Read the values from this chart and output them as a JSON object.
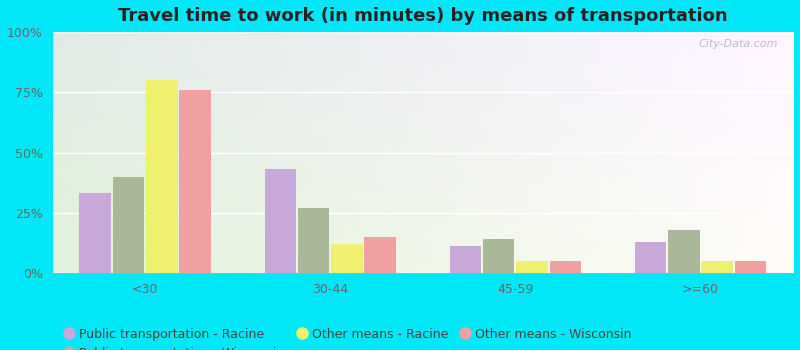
{
  "title": "Travel time to work (in minutes) by means of transportation",
  "categories": [
    "<30",
    "30-44",
    "45-59",
    ">=60"
  ],
  "series_order": [
    "Public transportation - Racine",
    "Public transportation - Wisconsin",
    "Other means - Racine",
    "Other means - Wisconsin"
  ],
  "series": {
    "Public transportation - Racine": [
      33,
      43,
      11,
      13
    ],
    "Public transportation - Wisconsin": [
      40,
      27,
      14,
      18
    ],
    "Other means - Racine": [
      80,
      12,
      5,
      5
    ],
    "Other means - Wisconsin": [
      76,
      15,
      5,
      5
    ]
  },
  "colors": {
    "Public transportation - Racine": "#c8a8d8",
    "Public transportation - Wisconsin": "#a8b898",
    "Other means - Racine": "#f0f070",
    "Other means - Wisconsin": "#f0a0a0"
  },
  "background_outer": "#00e8f8",
  "ylim": [
    0,
    100
  ],
  "yticks": [
    0,
    25,
    50,
    75,
    100
  ],
  "ytick_labels": [
    "0%",
    "25%",
    "50%",
    "75%",
    "100%"
  ],
  "bar_width": 0.17,
  "title_fontsize": 13,
  "legend_fontsize": 9,
  "tick_fontsize": 9,
  "watermark": "City-Data.com"
}
